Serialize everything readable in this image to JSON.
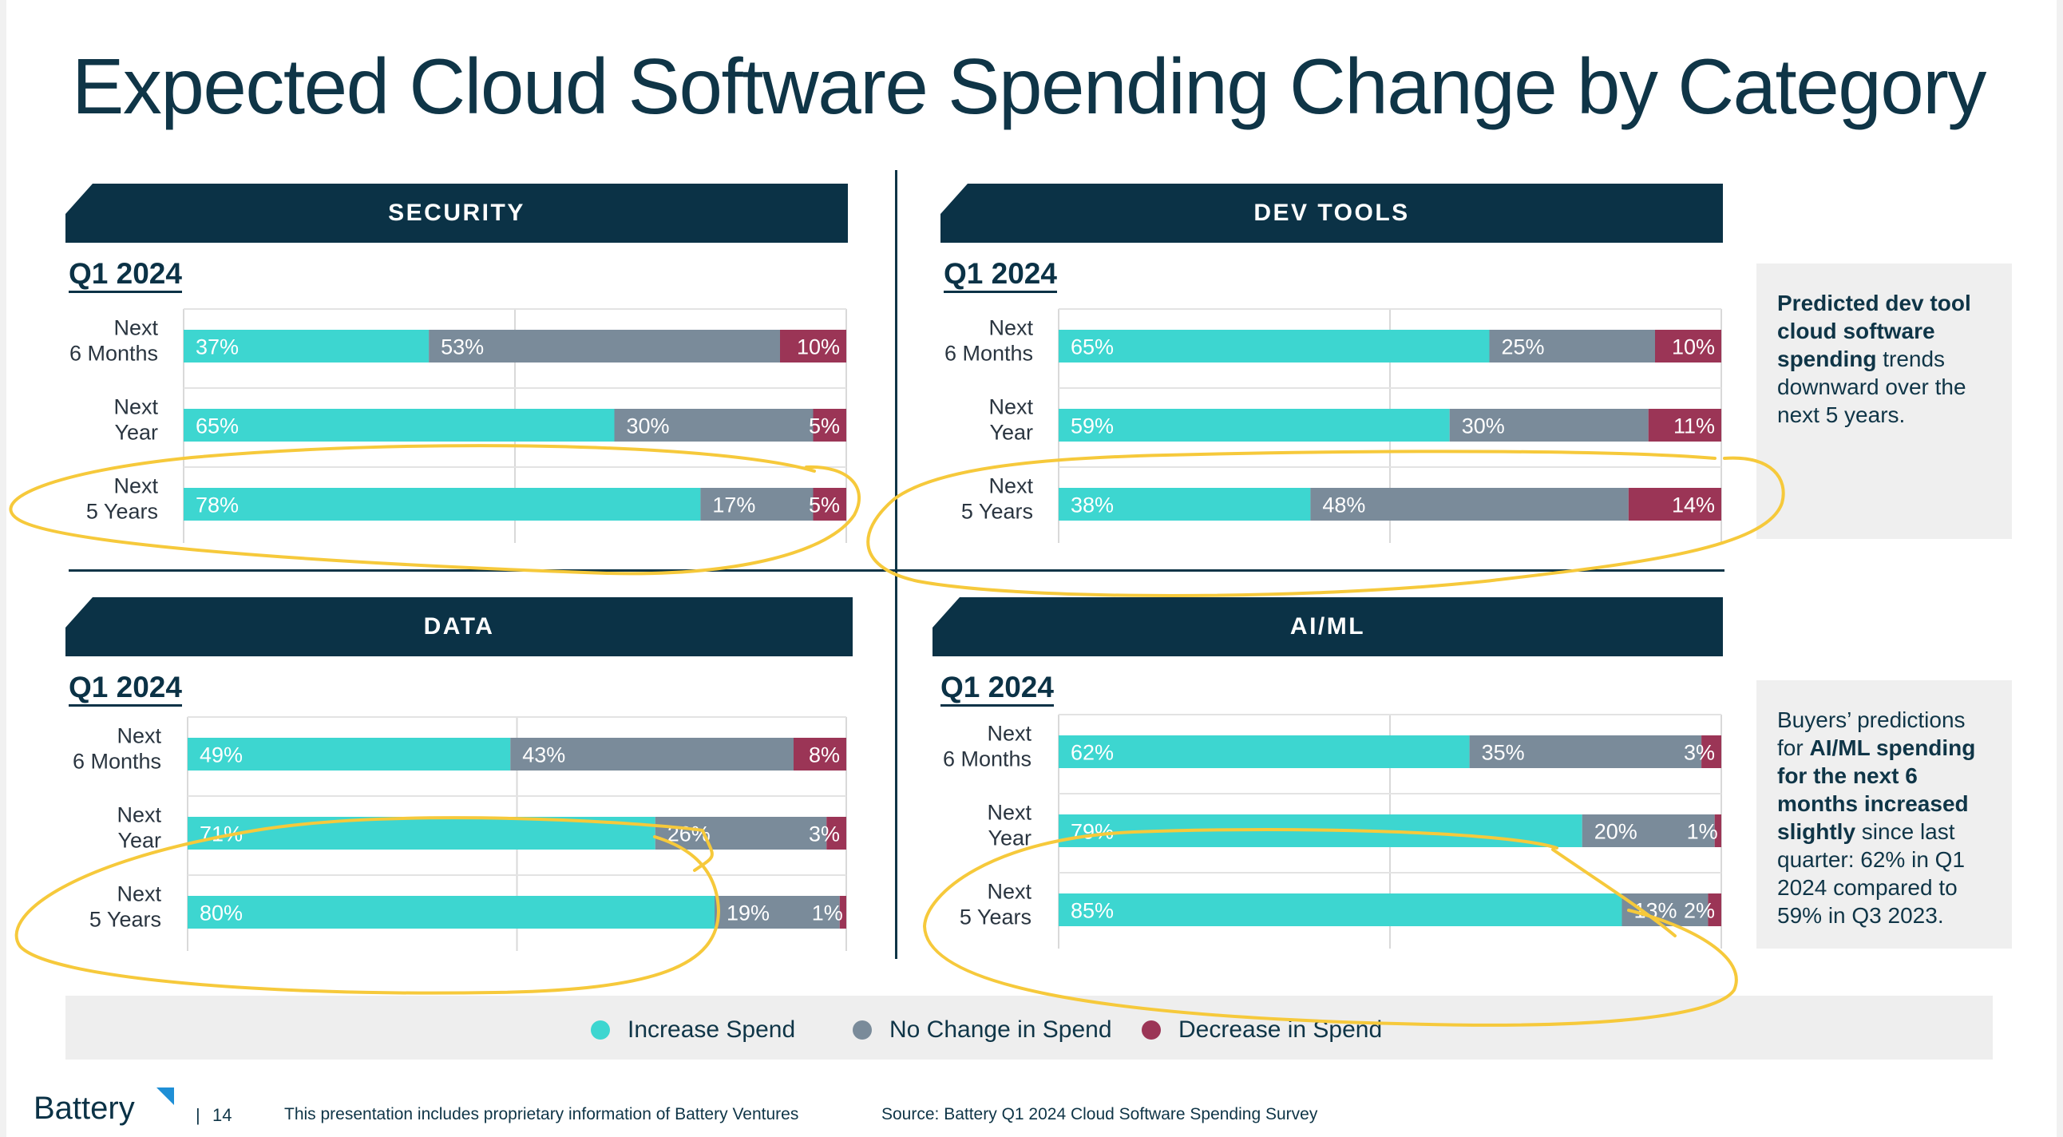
{
  "title": "Expected Cloud Software Spending Change by Category",
  "colors": {
    "increase": "#3dd6d0",
    "no_change": "#7a8b9a",
    "decrease": "#9b3556",
    "navy": "#0b3246",
    "annotation": "#f6c93b"
  },
  "panels": [
    {
      "name": "SECURITY",
      "period": "Q1 2024"
    },
    {
      "name": "DEV TOOLS",
      "period": "Q1 2024"
    },
    {
      "name": "DATA",
      "period": "Q1 2024"
    },
    {
      "name": "AI/ML",
      "period": "Q1 2024"
    }
  ],
  "chart_data": [
    {
      "type": "bar",
      "stacked": true,
      "orientation": "horizontal",
      "title": "SECURITY",
      "subtitle": "Q1 2024",
      "categories": [
        "Next\n6 Months",
        "Next\nYear",
        "Next\n5 Years"
      ],
      "series": [
        {
          "name": "Increase Spend",
          "values": [
            37,
            65,
            78
          ],
          "labels": [
            "37%",
            "65%",
            "78%"
          ]
        },
        {
          "name": "No Change in Spend",
          "values": [
            53,
            30,
            17
          ],
          "labels": [
            "53%",
            "30%",
            "17%"
          ]
        },
        {
          "name": "Decrease in Spend",
          "values": [
            10,
            5,
            5
          ],
          "labels": [
            "10%",
            "5%",
            "5%"
          ]
        }
      ],
      "xlim": [
        0,
        100
      ],
      "grid": true
    },
    {
      "type": "bar",
      "stacked": true,
      "orientation": "horizontal",
      "title": "DEV TOOLS",
      "subtitle": "Q1 2024",
      "categories": [
        "Next\n6 Months",
        "Next\nYear",
        "Next\n5 Years"
      ],
      "series": [
        {
          "name": "Increase Spend",
          "values": [
            65,
            59,
            38
          ],
          "labels": [
            "65%",
            "59%",
            "38%"
          ]
        },
        {
          "name": "No Change in Spend",
          "values": [
            25,
            30,
            48
          ],
          "labels": [
            "25%",
            "30%",
            "48%"
          ]
        },
        {
          "name": "Decrease in Spend",
          "values": [
            10,
            11,
            14
          ],
          "labels": [
            "10%",
            "11%",
            "14%"
          ]
        }
      ],
      "xlim": [
        0,
        100
      ],
      "grid": true
    },
    {
      "type": "bar",
      "stacked": true,
      "orientation": "horizontal",
      "title": "DATA",
      "subtitle": "Q1 2024",
      "categories": [
        "Next\n6 Months",
        "Next\nYear",
        "Next\n5 Years"
      ],
      "series": [
        {
          "name": "Increase Spend",
          "values": [
            49,
            71,
            80
          ],
          "labels": [
            "49%",
            "71%",
            "80%"
          ]
        },
        {
          "name": "No Change in Spend",
          "values": [
            43,
            26,
            19
          ],
          "labels": [
            "43%",
            "26%",
            "19%"
          ]
        },
        {
          "name": "Decrease in Spend",
          "values": [
            8,
            3,
            1
          ],
          "labels": [
            "8%",
            "3%",
            "1%"
          ]
        }
      ],
      "xlim": [
        0,
        100
      ],
      "grid": true
    },
    {
      "type": "bar",
      "stacked": true,
      "orientation": "horizontal",
      "title": "AI/ML",
      "subtitle": "Q1 2024",
      "categories": [
        "Next\n6 Months",
        "Next\nYear",
        "Next\n5 Years"
      ],
      "series": [
        {
          "name": "Increase Spend",
          "values": [
            62,
            79,
            85
          ],
          "labels": [
            "62%",
            "79%",
            "85%"
          ]
        },
        {
          "name": "No Change in Spend",
          "values": [
            35,
            20,
            13
          ],
          "labels": [
            "35%",
            "20%",
            "13%"
          ]
        },
        {
          "name": "Decrease in Spend",
          "values": [
            3,
            1,
            2
          ],
          "labels": [
            "3%",
            "1%",
            "2%"
          ]
        }
      ],
      "xlim": [
        0,
        100
      ],
      "grid": true
    }
  ],
  "legend": [
    "Increase Spend",
    "No Change in Spend",
    "Decrease in Spend"
  ],
  "notes": {
    "devtools": [
      {
        "t": "Predicted dev tool cloud software spending",
        "b": true
      },
      {
        "t": " trends downward over the next 5 years.",
        "b": false
      }
    ],
    "aiml": [
      {
        "t": "Buyers’ predictions for ",
        "b": false
      },
      {
        "t": "AI/ML spending for the next 6 months increased slightly",
        "b": true
      },
      {
        "t": " since last quarter: 62% in Q1 2024 compared to 59% in Q3 2023.",
        "b": false
      }
    ]
  },
  "footer": {
    "logo": "Battery",
    "separator": "|",
    "page": "14",
    "note": "This presentation includes proprietary information of Battery Ventures",
    "source": "Source: Battery Q1 2024 Cloud Software Spending Survey"
  }
}
